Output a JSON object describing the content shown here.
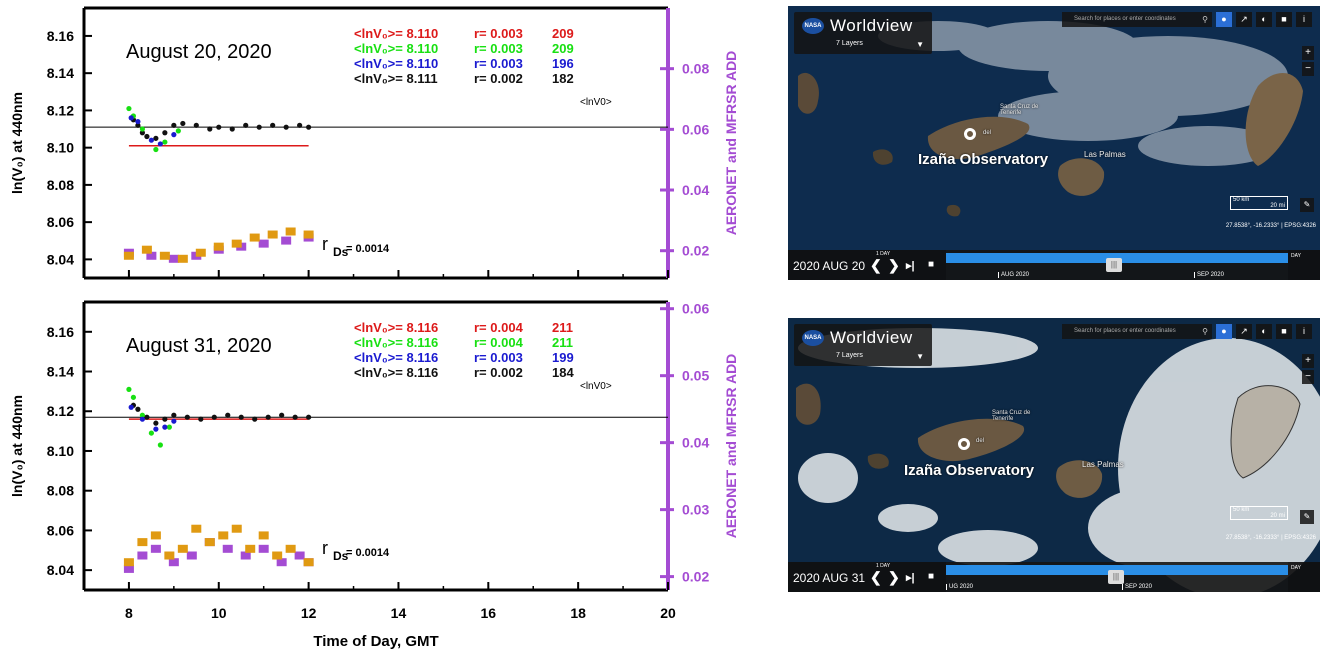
{
  "colors": {
    "axis_right": "#a44cd3",
    "ref_red": "#dd1a1a",
    "green": "#18e012",
    "blue": "#1a1ad0",
    "black": "#111111",
    "purple": "#a44cd3",
    "orange": "#e09a12"
  },
  "chart_data": [
    {
      "type": "scatter",
      "panel": "top",
      "title": "August 20, 2020",
      "xlabel": "Time of Day, GMT",
      "ylabel": "ln(V₀) at 440nm",
      "y2label": "AERONET and MFRSR ADD",
      "xlim": [
        7,
        20
      ],
      "ylim": [
        8.03,
        8.175
      ],
      "y2lim": [
        0.011,
        0.1
      ],
      "xticks": [
        "8",
        "10",
        "12",
        "14",
        "16",
        "18",
        "20"
      ],
      "yticks": [
        "8.04",
        "8.06",
        "8.08",
        "8.10",
        "8.12",
        "8.14",
        "8.16"
      ],
      "y2ticks": [
        "0.02",
        "0.04",
        "0.06",
        "0.08"
      ],
      "stats": [
        {
          "label": "<lnV₀>= 8.110",
          "r": "r= 0.003",
          "n": "209",
          "color": "#dd1a1a"
        },
        {
          "label": "<lnV₀>= 8.110",
          "r": "r= 0.003",
          "n": "209",
          "color": "#18e012"
        },
        {
          "label": "<lnV₀>= 8.110",
          "r": "r= 0.003",
          "n": "196",
          "color": "#1a1ad0"
        },
        {
          "label": "<lnV₀>= 8.111",
          "r": "r= 0.002",
          "n": "182",
          "color": "#111111"
        }
      ],
      "legend_note": "<lnV0>",
      "rds_label": "r",
      "rds_sub": "Ds",
      "rds_value": "= 0.0014",
      "hline_black": 8.111,
      "hline_red": {
        "y": 8.101,
        "x": [
          8,
          12
        ]
      },
      "series": [
        {
          "name": "lnV0 black",
          "color": "#111111",
          "points": [
            [
              8.1,
              8.115
            ],
            [
              8.2,
              8.112
            ],
            [
              8.3,
              8.108
            ],
            [
              8.4,
              8.106
            ],
            [
              8.6,
              8.105
            ],
            [
              8.8,
              8.108
            ],
            [
              9.0,
              8.112
            ],
            [
              9.2,
              8.113
            ],
            [
              9.5,
              8.112
            ],
            [
              9.8,
              8.11
            ],
            [
              10.0,
              8.111
            ],
            [
              10.3,
              8.11
            ],
            [
              10.6,
              8.112
            ],
            [
              10.9,
              8.111
            ],
            [
              11.2,
              8.112
            ],
            [
              11.5,
              8.111
            ],
            [
              11.8,
              8.112
            ],
            [
              12.0,
              8.111
            ]
          ]
        },
        {
          "name": "green",
          "color": "#18e012",
          "points": [
            [
              8.0,
              8.121
            ],
            [
              8.1,
              8.117
            ],
            [
              8.3,
              8.11
            ],
            [
              8.6,
              8.099
            ],
            [
              8.8,
              8.103
            ],
            [
              9.1,
              8.109
            ]
          ]
        },
        {
          "name": "blue",
          "color": "#1a1ad0",
          "points": [
            [
              8.05,
              8.116
            ],
            [
              8.2,
              8.114
            ],
            [
              8.5,
              8.104
            ],
            [
              8.7,
              8.102
            ],
            [
              9.0,
              8.107
            ]
          ]
        },
        {
          "name": "AERONET ADD",
          "color": "#a44cd3",
          "points": [
            [
              8.0,
              0.019
            ],
            [
              8.5,
              0.018
            ],
            [
              9.0,
              0.017
            ],
            [
              9.5,
              0.018
            ],
            [
              10.0,
              0.02
            ],
            [
              10.5,
              0.021
            ],
            [
              11.0,
              0.022
            ],
            [
              11.5,
              0.023
            ],
            [
              12.0,
              0.024
            ]
          ]
        },
        {
          "name": "MFRSR ADD",
          "color": "#e09a12",
          "points": [
            [
              8.0,
              0.018
            ],
            [
              8.4,
              0.02
            ],
            [
              8.8,
              0.018
            ],
            [
              9.2,
              0.017
            ],
            [
              9.6,
              0.019
            ],
            [
              10.0,
              0.021
            ],
            [
              10.4,
              0.022
            ],
            [
              10.8,
              0.024
            ],
            [
              11.2,
              0.025
            ],
            [
              11.6,
              0.026
            ],
            [
              12.0,
              0.025
            ]
          ]
        }
      ]
    },
    {
      "type": "scatter",
      "panel": "bottom",
      "title": "August 31, 2020",
      "xlabel": "Time of Day, GMT",
      "ylabel": "ln(V₀) at 440nm",
      "y2label": "AERONET and MFRSR ADD",
      "xlim": [
        7,
        20
      ],
      "ylim": [
        8.03,
        8.175
      ],
      "y2lim": [
        0.018,
        0.061
      ],
      "xticks": [
        "8",
        "10",
        "12",
        "14",
        "16",
        "18",
        "20"
      ],
      "yticks": [
        "8.04",
        "8.06",
        "8.08",
        "8.10",
        "8.12",
        "8.14",
        "8.16"
      ],
      "y2ticks": [
        "0.02",
        "0.03",
        "0.04",
        "0.05",
        "0.06"
      ],
      "stats": [
        {
          "label": "<lnV₀>= 8.116",
          "r": "r= 0.004",
          "n": "211",
          "color": "#dd1a1a"
        },
        {
          "label": "<lnV₀>= 8.116",
          "r": "r= 0.004",
          "n": "211",
          "color": "#18e012"
        },
        {
          "label": "<lnV₀>= 8.116",
          "r": "r= 0.003",
          "n": "199",
          "color": "#1a1ad0"
        },
        {
          "label": "<lnV₀>= 8.116",
          "r": "r= 0.002",
          "n": "184",
          "color": "#111111"
        }
      ],
      "legend_note": "<lnV0>",
      "rds_label": "r",
      "rds_sub": "Ds",
      "rds_value": "= 0.0014",
      "hline_black": 8.117,
      "hline_red": {
        "y": 8.116,
        "x": [
          8,
          12
        ]
      },
      "series": [
        {
          "name": "lnV0 black",
          "color": "#111111",
          "points": [
            [
              8.1,
              8.123
            ],
            [
              8.2,
              8.121
            ],
            [
              8.4,
              8.117
            ],
            [
              8.6,
              8.114
            ],
            [
              8.8,
              8.116
            ],
            [
              9.0,
              8.118
            ],
            [
              9.3,
              8.117
            ],
            [
              9.6,
              8.116
            ],
            [
              9.9,
              8.117
            ],
            [
              10.2,
              8.118
            ],
            [
              10.5,
              8.117
            ],
            [
              10.8,
              8.116
            ],
            [
              11.1,
              8.117
            ],
            [
              11.4,
              8.118
            ],
            [
              11.7,
              8.117
            ],
            [
              12.0,
              8.117
            ]
          ]
        },
        {
          "name": "green",
          "color": "#18e012",
          "points": [
            [
              8.0,
              8.131
            ],
            [
              8.1,
              8.127
            ],
            [
              8.3,
              8.118
            ],
            [
              8.5,
              8.109
            ],
            [
              8.7,
              8.103
            ],
            [
              8.9,
              8.112
            ]
          ]
        },
        {
          "name": "blue",
          "color": "#1a1ad0",
          "points": [
            [
              8.05,
              8.122
            ],
            [
              8.3,
              8.116
            ],
            [
              8.6,
              8.111
            ],
            [
              8.8,
              8.112
            ],
            [
              9.0,
              8.115
            ]
          ]
        },
        {
          "name": "AERONET ADD",
          "color": "#a44cd3",
          "points": [
            [
              8.0,
              0.021
            ],
            [
              8.3,
              0.023
            ],
            [
              8.6,
              0.024
            ],
            [
              9.0,
              0.022
            ],
            [
              9.4,
              0.023
            ],
            [
              9.8,
              0.025
            ],
            [
              10.2,
              0.024
            ],
            [
              10.6,
              0.023
            ],
            [
              11.0,
              0.024
            ],
            [
              11.4,
              0.022
            ],
            [
              11.8,
              0.023
            ],
            [
              12.0,
              0.022
            ]
          ]
        },
        {
          "name": "MFRSR ADD",
          "color": "#e09a12",
          "points": [
            [
              8.0,
              0.022
            ],
            [
              8.3,
              0.025
            ],
            [
              8.6,
              0.026
            ],
            [
              8.9,
              0.023
            ],
            [
              9.2,
              0.024
            ],
            [
              9.5,
              0.027
            ],
            [
              9.8,
              0.025
            ],
            [
              10.1,
              0.026
            ],
            [
              10.4,
              0.027
            ],
            [
              10.7,
              0.024
            ],
            [
              11.0,
              0.026
            ],
            [
              11.3,
              0.023
            ],
            [
              11.6,
              0.024
            ],
            [
              12.0,
              0.022
            ]
          ]
        }
      ]
    }
  ],
  "worldview": [
    {
      "title": "Worldview",
      "nasa": "NASA",
      "layers": "7 Layers",
      "search_placeholder": "Search for places or enter coordinates",
      "place": "Izaña Observatory",
      "city1": "Santa Cruz de Tenerife",
      "city2": "Las Palmas",
      "marker_sub": "del",
      "scale_km": "50 km",
      "scale_mi": "20 mi",
      "coords": "27.8538°, -16.2333° | EPSG:4326",
      "date": "2020 AUG 20",
      "interval": "1 DAY",
      "month1": "AUG 2020",
      "month2": "SEP 2020",
      "day_ctl": "DAY"
    },
    {
      "title": "Worldview",
      "nasa": "NASA",
      "layers": "7 Layers",
      "search_placeholder": "Search for places or enter coordinates",
      "place": "Izaña Observatory",
      "city1": "Santa Cruz de Tenerife",
      "city2": "Las Palmas",
      "marker_sub": "del",
      "scale_km": "50 km",
      "scale_mi": "20 mi",
      "coords": "27.8538°, -16.2333° | EPSG:4326",
      "date": "2020 AUG 31",
      "interval": "1 DAY",
      "month1": "UG 2020",
      "month2": "SEP 2020",
      "day_ctl": "DAY"
    }
  ]
}
